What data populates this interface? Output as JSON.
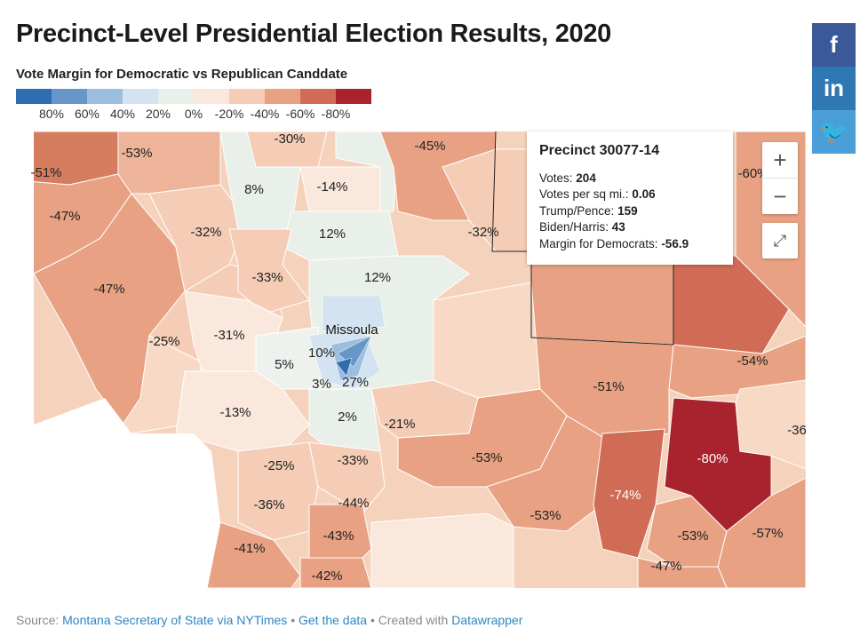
{
  "title": "Precinct-Level Presidential Election Results, 2020",
  "legend": {
    "title": "Vote Margin for Democratic vs Republican Canddate",
    "colors": [
      "#2f6db0",
      "#6796c9",
      "#9dbfdf",
      "#d3e3f1",
      "#e9efe9",
      "#fae8dc",
      "#f5cdb6",
      "#e8a283",
      "#d06b55",
      "#a9232e"
    ],
    "labels": [
      "80%",
      "60%",
      "40%",
      "20%",
      "0%",
      "-20%",
      "-40%",
      "-60%",
      "-80%"
    ]
  },
  "map": {
    "city": "Missoula",
    "labels": [
      "-53%",
      "-51%",
      "-47%",
      "-30%",
      "8%",
      "-14%",
      "-45%",
      "-32%",
      "12%",
      "-32%",
      "-47%",
      "-33%",
      "12%",
      "-25%",
      "-31%",
      "10%",
      "5%",
      "3%",
      "27%",
      "-13%",
      "2%",
      "-21%",
      "-51%",
      "-54%",
      "-53%",
      "-74%",
      "-80%",
      "-36",
      "-25%",
      "-33%",
      "-36%",
      "-44%",
      "-53%",
      "-41%",
      "-43%",
      "-42%",
      "-53%",
      "-57%",
      "-47%",
      "-60%"
    ]
  },
  "tooltip": {
    "title": "Precinct 30077-14",
    "votes_label": "Votes:",
    "votes": "204",
    "density_label": "Votes per sq mi.:",
    "density": "0.06",
    "trump_label": "Trump/Pence:",
    "trump": "159",
    "biden_label": "Biden/Harris:",
    "biden": "43",
    "margin_label": "Margin for Democrats:",
    "margin": "-56.9"
  },
  "controls": {
    "zoom_in": "+",
    "zoom_out": "−",
    "fit": "⤢"
  },
  "share": {
    "facebook": "f",
    "linkedin": "in",
    "twitter": "🐦"
  },
  "footer": {
    "source_label": "Source:",
    "source_link": "Montana Secretary of State via NYTimes",
    "sep1": "•",
    "data_link": "Get the data",
    "sep2": "•",
    "created": "Created with",
    "dw_link": "Datawrapper"
  }
}
